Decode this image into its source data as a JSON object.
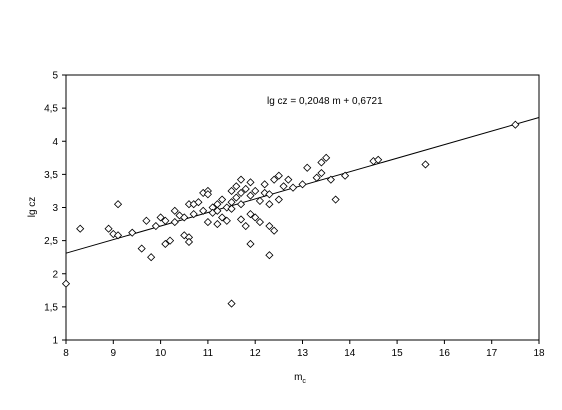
{
  "chart_data": {
    "type": "scatter",
    "xlabel": "m",
    "xlabel_subscript": "c",
    "ylabel": "lg cz",
    "xlim": [
      8,
      18
    ],
    "ylim": [
      1,
      5
    ],
    "x_ticks": [
      "8",
      "9",
      "10",
      "11",
      "12",
      "13",
      "14",
      "15",
      "16",
      "17",
      "18"
    ],
    "y_ticks": [
      "1",
      "1,5",
      "2",
      "2,5",
      "3",
      "3,5",
      "4",
      "4,5",
      "5"
    ],
    "grid": false,
    "marker": "diamond",
    "annotation": "lg cz = 0,2048 m + 0,6721",
    "trendline": {
      "slope": 0.2048,
      "intercept": 0.6721
    },
    "points": [
      [
        8.0,
        1.85
      ],
      [
        8.3,
        2.68
      ],
      [
        8.9,
        2.68
      ],
      [
        9.0,
        2.6
      ],
      [
        9.1,
        3.05
      ],
      [
        9.1,
        2.58
      ],
      [
        9.4,
        2.62
      ],
      [
        9.6,
        2.38
      ],
      [
        9.7,
        2.8
      ],
      [
        9.8,
        2.25
      ],
      [
        9.9,
        2.72
      ],
      [
        10.0,
        2.85
      ],
      [
        10.1,
        2.8
      ],
      [
        10.1,
        2.45
      ],
      [
        10.2,
        2.5
      ],
      [
        10.3,
        2.95
      ],
      [
        10.3,
        2.78
      ],
      [
        10.4,
        2.88
      ],
      [
        10.5,
        2.85
      ],
      [
        10.5,
        2.58
      ],
      [
        10.6,
        2.55
      ],
      [
        10.6,
        2.48
      ],
      [
        10.6,
        3.05
      ],
      [
        10.7,
        3.05
      ],
      [
        10.7,
        2.9
      ],
      [
        10.8,
        3.08
      ],
      [
        10.9,
        3.22
      ],
      [
        10.9,
        2.95
      ],
      [
        11.0,
        3.25
      ],
      [
        11.0,
        3.2
      ],
      [
        11.0,
        2.78
      ],
      [
        11.1,
        3.0
      ],
      [
        11.1,
        2.92
      ],
      [
        11.2,
        3.05
      ],
      [
        11.2,
        2.75
      ],
      [
        11.2,
        2.95
      ],
      [
        11.3,
        3.12
      ],
      [
        11.3,
        2.85
      ],
      [
        11.4,
        3.0
      ],
      [
        11.4,
        2.8
      ],
      [
        11.5,
        3.25
      ],
      [
        11.5,
        3.08
      ],
      [
        11.5,
        2.98
      ],
      [
        11.5,
        1.55
      ],
      [
        11.6,
        3.32
      ],
      [
        11.6,
        3.15
      ],
      [
        11.7,
        3.42
      ],
      [
        11.7,
        3.22
      ],
      [
        11.7,
        3.05
      ],
      [
        11.7,
        2.82
      ],
      [
        11.8,
        3.28
      ],
      [
        11.8,
        2.72
      ],
      [
        11.9,
        3.38
      ],
      [
        11.9,
        3.18
      ],
      [
        11.9,
        2.9
      ],
      [
        11.9,
        2.45
      ],
      [
        12.0,
        3.25
      ],
      [
        12.0,
        2.85
      ],
      [
        12.1,
        3.1
      ],
      [
        12.1,
        2.78
      ],
      [
        12.2,
        3.35
      ],
      [
        12.2,
        3.22
      ],
      [
        12.3,
        3.2
      ],
      [
        12.3,
        3.05
      ],
      [
        12.3,
        2.72
      ],
      [
        12.3,
        2.28
      ],
      [
        12.4,
        3.42
      ],
      [
        12.4,
        2.65
      ],
      [
        12.5,
        3.48
      ],
      [
        12.5,
        3.12
      ],
      [
        12.6,
        3.32
      ],
      [
        12.7,
        3.42
      ],
      [
        12.8,
        3.3
      ],
      [
        13.0,
        3.35
      ],
      [
        13.1,
        3.6
      ],
      [
        13.3,
        3.45
      ],
      [
        13.4,
        3.68
      ],
      [
        13.4,
        3.52
      ],
      [
        13.5,
        3.75
      ],
      [
        13.6,
        3.42
      ],
      [
        13.7,
        3.12
      ],
      [
        13.9,
        3.48
      ],
      [
        14.5,
        3.7
      ],
      [
        14.6,
        3.72
      ],
      [
        15.6,
        3.65
      ],
      [
        17.5,
        4.25
      ]
    ]
  }
}
